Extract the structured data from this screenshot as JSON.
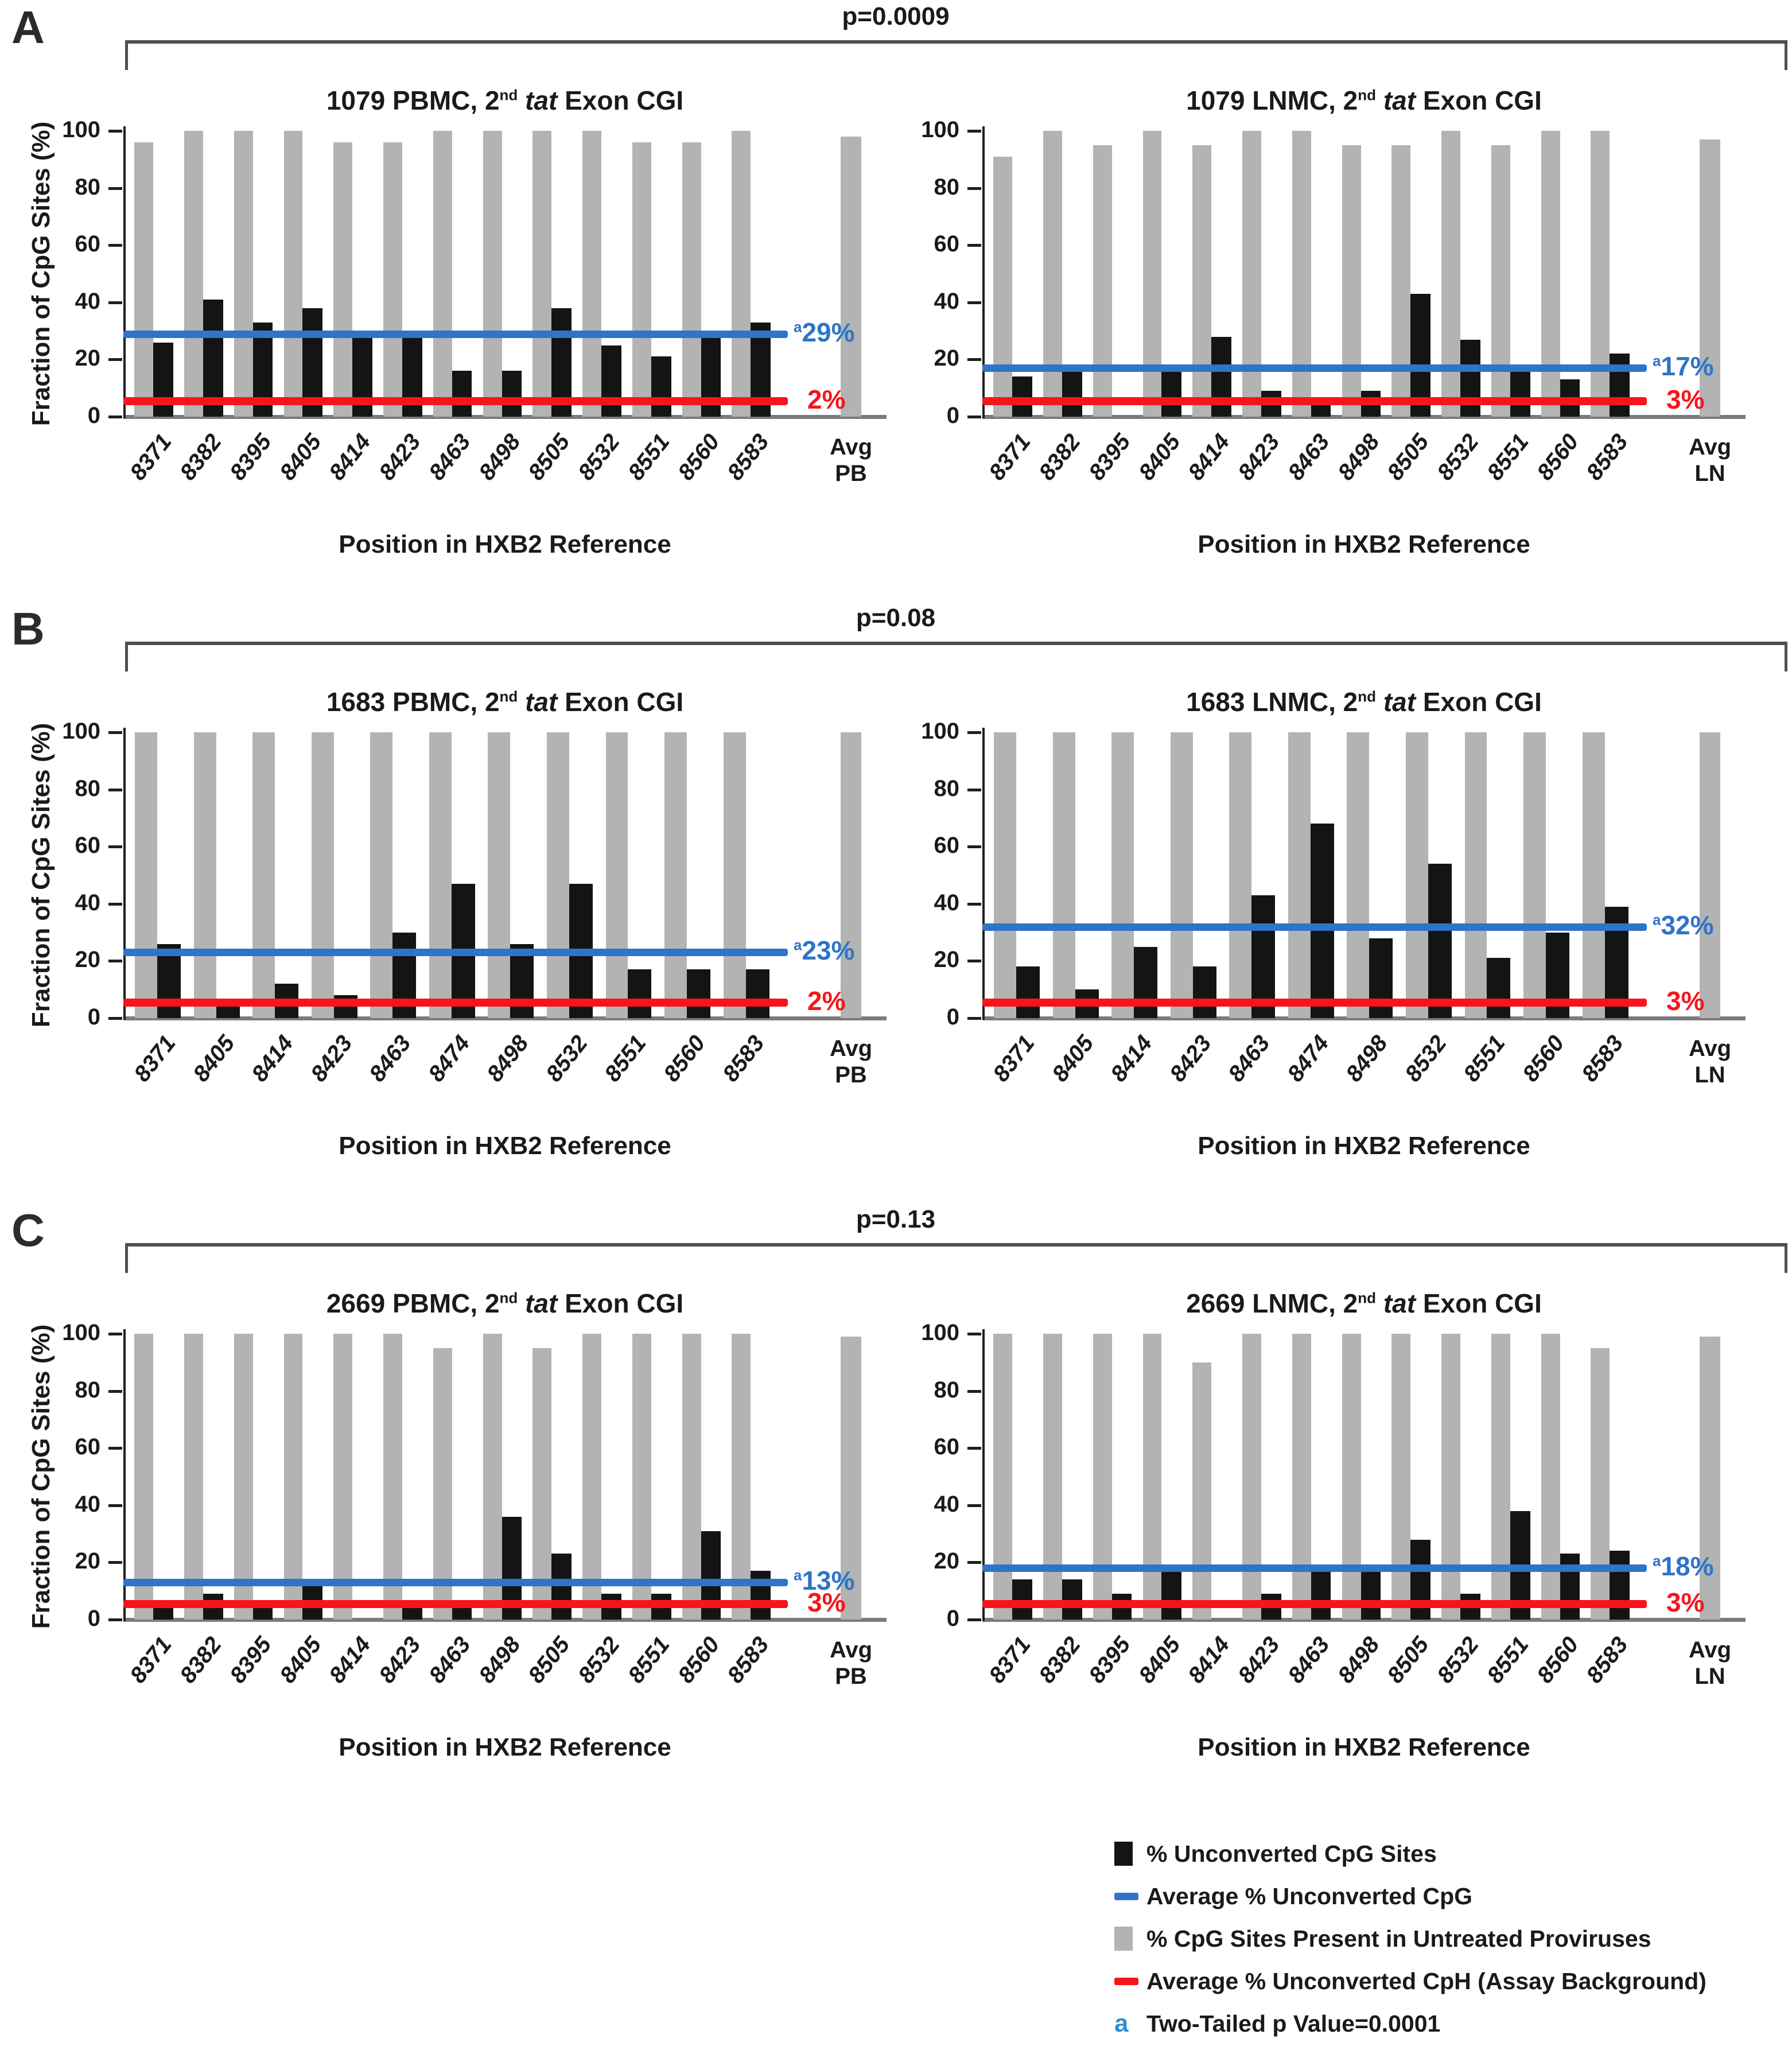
{
  "colors": {
    "gray_bar": "#b3b3b3",
    "black_bar": "#141414",
    "blue_line": "#2e74c8",
    "red_line": "#f8141c",
    "axis": "#7b7b7b",
    "bracket": "#4f4f4f"
  },
  "panels": [
    {
      "letter": "A",
      "p_value": "p=0.0009"
    },
    {
      "letter": "B",
      "p_value": "p=0.08"
    },
    {
      "letter": "C",
      "p_value": "p=0.13"
    }
  ],
  "chart_data": [
    {
      "type": "bar",
      "panel": "A",
      "side": "left",
      "title_parts": [
        {
          "t": "1079 PBMC, 2"
        },
        {
          "t": "nd",
          "sup": true
        },
        {
          "t": " "
        },
        {
          "t": "tat",
          "i": true
        },
        {
          "t": " Exon CGI"
        }
      ],
      "ylabel": "Fraction of CpG Sites (%)",
      "xlabel": "Position in HXB2 Reference",
      "ylim": [
        0,
        100
      ],
      "yticks": [
        0,
        20,
        40,
        60,
        80,
        100
      ],
      "categories": [
        "8371",
        "8382",
        "8395",
        "8405",
        "8414",
        "8423",
        "8463",
        "8498",
        "8505",
        "8532",
        "8551",
        "8560",
        "8583"
      ],
      "series": [
        {
          "name": "% CpG Sites Present in Untreated Proviruses",
          "values": [
            96,
            100,
            100,
            100,
            96,
            96,
            100,
            100,
            100,
            100,
            96,
            96,
            100
          ]
        },
        {
          "name": "% Unconverted CpG Sites",
          "values": [
            26,
            41,
            33,
            38,
            29,
            29,
            16,
            16,
            38,
            25,
            21,
            29,
            33
          ]
        }
      ],
      "avg": {
        "line1": "Avg",
        "line2": "PB",
        "untreated_value": 98
      },
      "average_unconverted_cpg": {
        "value": 29,
        "label": "29%",
        "sup": "a"
      },
      "assay_background": {
        "value": 2,
        "label": "2%"
      }
    },
    {
      "type": "bar",
      "panel": "A",
      "side": "right",
      "title_parts": [
        {
          "t": "1079 LNMC, 2"
        },
        {
          "t": "nd",
          "sup": true
        },
        {
          "t": " "
        },
        {
          "t": "tat",
          "i": true
        },
        {
          "t": " Exon CGI"
        }
      ],
      "ylabel": null,
      "xlabel": "Position in HXB2 Reference",
      "ylim": [
        0,
        100
      ],
      "yticks": [
        0,
        20,
        40,
        60,
        80,
        100
      ],
      "categories": [
        "8371",
        "8382",
        "8395",
        "8405",
        "8414",
        "8423",
        "8463",
        "8498",
        "8505",
        "8532",
        "8551",
        "8560",
        "8583"
      ],
      "series": [
        {
          "name": "% CpG Sites Present in Untreated Proviruses",
          "values": [
            91,
            100,
            95,
            100,
            95,
            100,
            100,
            95,
            95,
            100,
            95,
            100,
            100
          ]
        },
        {
          "name": "% Unconverted CpG Sites",
          "values": [
            14,
            16,
            0,
            16,
            28,
            9,
            4,
            9,
            43,
            27,
            18,
            13,
            22
          ]
        }
      ],
      "avg": {
        "line1": "Avg",
        "line2": "LN",
        "untreated_value": 97
      },
      "average_unconverted_cpg": {
        "value": 17,
        "label": "17%",
        "sup": "a"
      },
      "assay_background": {
        "value": 3,
        "label": "3%"
      }
    },
    {
      "type": "bar",
      "panel": "B",
      "side": "left",
      "title_parts": [
        {
          "t": "1683 PBMC, 2"
        },
        {
          "t": "nd",
          "sup": true
        },
        {
          "t": " "
        },
        {
          "t": "tat",
          "i": true
        },
        {
          "t": " Exon CGI"
        }
      ],
      "ylabel": "Fraction of CpG Sites (%)",
      "xlabel": "Position in HXB2 Reference",
      "ylim": [
        0,
        100
      ],
      "yticks": [
        0,
        20,
        40,
        60,
        80,
        100
      ],
      "categories": [
        "8371",
        "8405",
        "8414",
        "8423",
        "8463",
        "8474",
        "8498",
        "8532",
        "8551",
        "8560",
        "8583"
      ],
      "series": [
        {
          "name": "% CpG Sites Present in Untreated Proviruses",
          "values": [
            100,
            100,
            100,
            100,
            100,
            100,
            100,
            100,
            100,
            100,
            100
          ]
        },
        {
          "name": "% Unconverted CpG Sites",
          "values": [
            26,
            5,
            12,
            8,
            30,
            47,
            26,
            47,
            17,
            17,
            17
          ]
        }
      ],
      "avg": {
        "line1": "Avg",
        "line2": "PB",
        "untreated_value": 100
      },
      "average_unconverted_cpg": {
        "value": 23,
        "label": "23%",
        "sup": "a"
      },
      "assay_background": {
        "value": 2,
        "label": "2%"
      }
    },
    {
      "type": "bar",
      "panel": "B",
      "side": "right",
      "title_parts": [
        {
          "t": "1683 LNMC, 2"
        },
        {
          "t": "nd",
          "sup": true
        },
        {
          "t": " "
        },
        {
          "t": "tat",
          "i": true
        },
        {
          "t": " Exon CGI"
        }
      ],
      "ylabel": null,
      "xlabel": "Position in HXB2 Reference",
      "ylim": [
        0,
        100
      ],
      "yticks": [
        0,
        20,
        40,
        60,
        80,
        100
      ],
      "categories": [
        "8371",
        "8405",
        "8414",
        "8423",
        "8463",
        "8474",
        "8498",
        "8532",
        "8551",
        "8560",
        "8583"
      ],
      "series": [
        {
          "name": "% CpG Sites Present in Untreated Proviruses",
          "values": [
            100,
            100,
            100,
            100,
            100,
            100,
            100,
            100,
            100,
            100,
            100
          ]
        },
        {
          "name": "% Unconverted CpG Sites",
          "values": [
            18,
            10,
            25,
            18,
            43,
            68,
            28,
            54,
            21,
            30,
            39
          ]
        }
      ],
      "avg": {
        "line1": "Avg",
        "line2": "LN",
        "untreated_value": 100
      },
      "average_unconverted_cpg": {
        "value": 32,
        "label": "32%",
        "sup": "a"
      },
      "assay_background": {
        "value": 3,
        "label": "3%"
      }
    },
    {
      "type": "bar",
      "panel": "C",
      "side": "left",
      "title_parts": [
        {
          "t": "2669 PBMC, 2"
        },
        {
          "t": "nd",
          "sup": true
        },
        {
          "t": " "
        },
        {
          "t": "tat",
          "i": true
        },
        {
          "t": " Exon CGI"
        }
      ],
      "ylabel": "Fraction of CpG Sites (%)",
      "xlabel": "Position in HXB2 Reference",
      "ylim": [
        0,
        100
      ],
      "yticks": [
        0,
        20,
        40,
        60,
        80,
        100
      ],
      "categories": [
        "8371",
        "8382",
        "8395",
        "8405",
        "8414",
        "8423",
        "8463",
        "8498",
        "8505",
        "8532",
        "8551",
        "8560",
        "8583"
      ],
      "series": [
        {
          "name": "% CpG Sites Present in Untreated Proviruses",
          "values": [
            100,
            100,
            100,
            100,
            100,
            100,
            95,
            100,
            95,
            100,
            100,
            100,
            100
          ]
        },
        {
          "name": "% Unconverted CpG Sites",
          "values": [
            4,
            9,
            4,
            13,
            0,
            4,
            5,
            36,
            23,
            9,
            9,
            31,
            17
          ]
        }
      ],
      "avg": {
        "line1": "Avg",
        "line2": "PB",
        "untreated_value": 99
      },
      "average_unconverted_cpg": {
        "value": 13,
        "label": "13%",
        "sup": "a"
      },
      "assay_background": {
        "value": 3,
        "label": "3%"
      }
    },
    {
      "type": "bar",
      "panel": "C",
      "side": "right",
      "title_parts": [
        {
          "t": "2669 LNMC, 2"
        },
        {
          "t": "nd",
          "sup": true
        },
        {
          "t": " "
        },
        {
          "t": "tat",
          "i": true
        },
        {
          "t": " Exon CGI"
        }
      ],
      "ylabel": null,
      "xlabel": "Position in HXB2 Reference",
      "ylim": [
        0,
        100
      ],
      "yticks": [
        0,
        20,
        40,
        60,
        80,
        100
      ],
      "categories": [
        "8371",
        "8382",
        "8395",
        "8405",
        "8414",
        "8423",
        "8463",
        "8498",
        "8505",
        "8532",
        "8551",
        "8560",
        "8583"
      ],
      "series": [
        {
          "name": "% CpG Sites Present in Untreated Proviruses",
          "values": [
            100,
            100,
            100,
            100,
            90,
            100,
            100,
            100,
            100,
            100,
            100,
            100,
            95
          ]
        },
        {
          "name": "% Unconverted CpG Sites",
          "values": [
            14,
            14,
            9,
            19,
            0,
            9,
            19,
            19,
            28,
            9,
            38,
            23,
            24
          ]
        }
      ],
      "avg": {
        "line1": "Avg",
        "line2": "LN",
        "untreated_value": 99
      },
      "average_unconverted_cpg": {
        "value": 18,
        "label": "18%",
        "sup": "a"
      },
      "assay_background": {
        "value": 3,
        "label": "3%"
      }
    }
  ],
  "legend": {
    "items": [
      {
        "marker": "black-square",
        "label": "% Unconverted CpG Sites"
      },
      {
        "marker": "blue-dash",
        "label": "Average % Unconverted CpG"
      },
      {
        "marker": "gray-square",
        "label": "% CpG Sites Present in Untreated Proviruses"
      },
      {
        "marker": "red-dash",
        "label": "Average % Unconverted CpH (Assay Background)"
      },
      {
        "marker": "a",
        "label": "Two-Tailed p Value=0.0001"
      }
    ]
  }
}
